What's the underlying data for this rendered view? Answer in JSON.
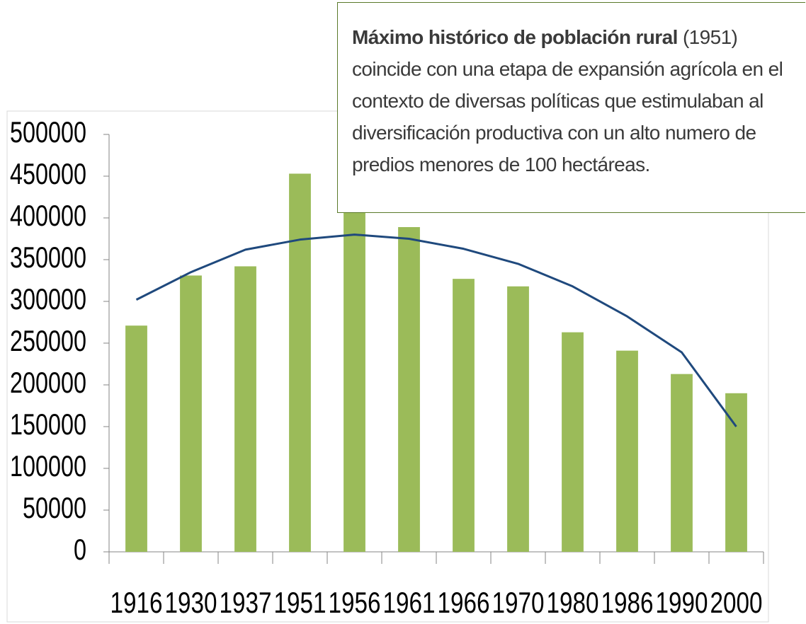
{
  "chart_data": {
    "type": "bar",
    "categories": [
      "1916",
      "1930",
      "1937",
      "1951",
      "1956",
      "1961",
      "1966",
      "1970",
      "1980",
      "1986",
      "1990",
      "2000"
    ],
    "values": [
      271000,
      331000,
      342000,
      453000,
      413000,
      389000,
      327000,
      318000,
      263000,
      241000,
      213000,
      190000
    ],
    "color": "#9bbb59",
    "trend": {
      "color": "#1f497d",
      "values": [
        302000,
        335000,
        362000,
        374000,
        380000,
        375000,
        363000,
        345000,
        318000,
        282000,
        239000,
        150000
      ]
    },
    "ylim": [
      0,
      500000
    ],
    "yticks": [
      0,
      50000,
      100000,
      150000,
      200000,
      250000,
      300000,
      350000,
      400000,
      450000,
      500000
    ],
    "annotation": {
      "bold": "Máximo histórico de población rural",
      "text": "(1951) coincide con una etapa de expansión agrícola en el contexto de diversas políticas que estimulaban al diversificación productiva con un alto numero de predios menores de 100 hectáreas."
    }
  }
}
